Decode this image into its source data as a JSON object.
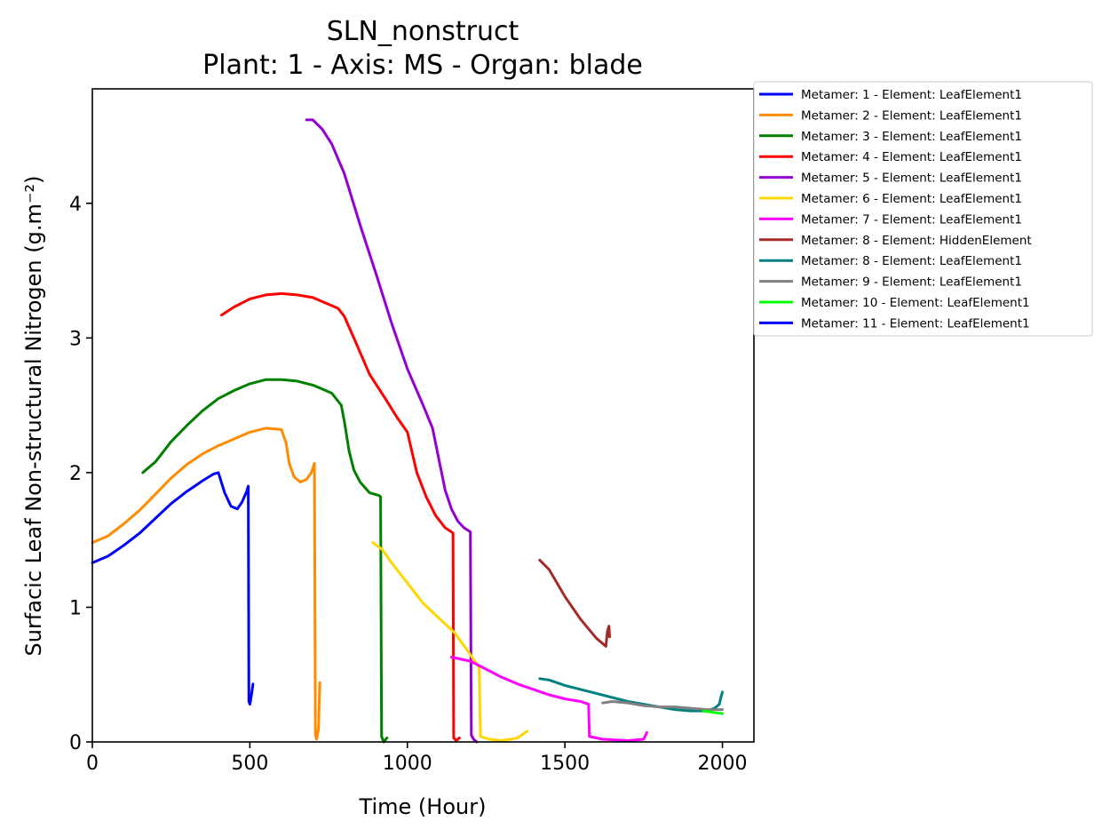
{
  "chart_data": {
    "type": "line",
    "title": "SLN_nonstruct",
    "subtitle": "Plant: 1 - Axis: MS - Organ: blade",
    "xlabel": "Time (Hour)",
    "ylabel": "Surfacic Leaf Non-structural Nitrogen (g.m⁻²)",
    "xlim": [
      0,
      2100
    ],
    "ylim": [
      0,
      4.85
    ],
    "xticks": [
      0,
      500,
      1000,
      1500,
      2000
    ],
    "yticks": [
      0,
      1,
      2,
      3,
      4
    ],
    "grid": false,
    "legend_position": "outside-top-right",
    "series": [
      {
        "name": "Metamer: 1 - Element: LeafElement1",
        "color": "#0000ff",
        "points": [
          [
            0,
            1.33
          ],
          [
            50,
            1.38
          ],
          [
            100,
            1.46
          ],
          [
            150,
            1.55
          ],
          [
            200,
            1.66
          ],
          [
            250,
            1.77
          ],
          [
            300,
            1.86
          ],
          [
            350,
            1.94
          ],
          [
            385,
            1.99
          ],
          [
            400,
            2.0
          ],
          [
            420,
            1.85
          ],
          [
            440,
            1.75
          ],
          [
            460,
            1.73
          ],
          [
            475,
            1.78
          ],
          [
            490,
            1.86
          ],
          [
            495,
            1.9
          ],
          [
            497,
            0.3
          ],
          [
            500,
            0.28
          ],
          [
            505,
            0.35
          ],
          [
            510,
            0.43
          ]
        ]
      },
      {
        "name": "Metamer: 2 - Element: LeafElement1",
        "color": "#ff8c00",
        "points": [
          [
            0,
            1.48
          ],
          [
            50,
            1.53
          ],
          [
            100,
            1.62
          ],
          [
            150,
            1.72
          ],
          [
            200,
            1.84
          ],
          [
            250,
            1.96
          ],
          [
            300,
            2.06
          ],
          [
            350,
            2.14
          ],
          [
            400,
            2.2
          ],
          [
            450,
            2.25
          ],
          [
            500,
            2.3
          ],
          [
            550,
            2.33
          ],
          [
            600,
            2.32
          ],
          [
            615,
            2.22
          ],
          [
            625,
            2.07
          ],
          [
            640,
            1.97
          ],
          [
            660,
            1.93
          ],
          [
            680,
            1.95
          ],
          [
            695,
            2.0
          ],
          [
            705,
            2.07
          ],
          [
            708,
            0.05
          ],
          [
            712,
            0.02
          ],
          [
            718,
            0.1
          ],
          [
            722,
            0.44
          ]
        ]
      },
      {
        "name": "Metamer: 3 - Element: LeafElement1",
        "color": "#008000",
        "points": [
          [
            160,
            2.0
          ],
          [
            200,
            2.08
          ],
          [
            250,
            2.23
          ],
          [
            300,
            2.35
          ],
          [
            350,
            2.46
          ],
          [
            400,
            2.55
          ],
          [
            450,
            2.61
          ],
          [
            500,
            2.66
          ],
          [
            550,
            2.69
          ],
          [
            600,
            2.69
          ],
          [
            650,
            2.68
          ],
          [
            700,
            2.65
          ],
          [
            730,
            2.62
          ],
          [
            760,
            2.59
          ],
          [
            790,
            2.5
          ],
          [
            800,
            2.38
          ],
          [
            815,
            2.16
          ],
          [
            830,
            2.02
          ],
          [
            850,
            1.93
          ],
          [
            880,
            1.85
          ],
          [
            910,
            1.83
          ],
          [
            915,
            1.82
          ],
          [
            918,
            0.04
          ],
          [
            925,
            0.0
          ],
          [
            935,
            0.03
          ]
        ]
      },
      {
        "name": "Metamer: 4 - Element: LeafElement1",
        "color": "#ff0000",
        "points": [
          [
            410,
            3.17
          ],
          [
            450,
            3.23
          ],
          [
            500,
            3.29
          ],
          [
            550,
            3.32
          ],
          [
            600,
            3.33
          ],
          [
            650,
            3.32
          ],
          [
            700,
            3.3
          ],
          [
            750,
            3.25
          ],
          [
            780,
            3.22
          ],
          [
            800,
            3.16
          ],
          [
            830,
            3.0
          ],
          [
            880,
            2.73
          ],
          [
            930,
            2.55
          ],
          [
            970,
            2.4
          ],
          [
            1000,
            2.3
          ],
          [
            1030,
            2.0
          ],
          [
            1060,
            1.82
          ],
          [
            1090,
            1.68
          ],
          [
            1120,
            1.59
          ],
          [
            1140,
            1.56
          ],
          [
            1145,
            1.55
          ],
          [
            1147,
            0.03
          ],
          [
            1155,
            0.01
          ],
          [
            1165,
            0.03
          ]
        ]
      },
      {
        "name": "Metamer: 5 - Element: LeafElement1",
        "color": "#9400d3",
        "points": [
          [
            680,
            4.62
          ],
          [
            700,
            4.62
          ],
          [
            730,
            4.55
          ],
          [
            760,
            4.44
          ],
          [
            800,
            4.22
          ],
          [
            850,
            3.84
          ],
          [
            900,
            3.48
          ],
          [
            950,
            3.11
          ],
          [
            1000,
            2.77
          ],
          [
            1050,
            2.5
          ],
          [
            1080,
            2.33
          ],
          [
            1100,
            2.1
          ],
          [
            1120,
            1.87
          ],
          [
            1140,
            1.73
          ],
          [
            1160,
            1.64
          ],
          [
            1180,
            1.59
          ],
          [
            1200,
            1.56
          ],
          [
            1203,
            0.05
          ],
          [
            1210,
            0.02
          ],
          [
            1220,
            0.0
          ]
        ]
      },
      {
        "name": "Metamer: 6 - Element: LeafElement1",
        "color": "#ffd700",
        "points": [
          [
            890,
            1.48
          ],
          [
            920,
            1.43
          ],
          [
            950,
            1.33
          ],
          [
            1000,
            1.18
          ],
          [
            1050,
            1.03
          ],
          [
            1100,
            0.92
          ],
          [
            1150,
            0.81
          ],
          [
            1190,
            0.68
          ],
          [
            1220,
            0.58
          ],
          [
            1228,
            0.55
          ],
          [
            1232,
            0.04
          ],
          [
            1260,
            0.02
          ],
          [
            1300,
            0.01
          ],
          [
            1350,
            0.03
          ],
          [
            1380,
            0.08
          ]
        ]
      },
      {
        "name": "Metamer: 7 - Element: LeafElement1",
        "color": "#ff00ff",
        "points": [
          [
            1140,
            0.63
          ],
          [
            1200,
            0.6
          ],
          [
            1250,
            0.54
          ],
          [
            1300,
            0.48
          ],
          [
            1350,
            0.43
          ],
          [
            1400,
            0.39
          ],
          [
            1450,
            0.35
          ],
          [
            1500,
            0.32
          ],
          [
            1550,
            0.3
          ],
          [
            1575,
            0.28
          ],
          [
            1578,
            0.04
          ],
          [
            1620,
            0.02
          ],
          [
            1700,
            0.01
          ],
          [
            1750,
            0.02
          ],
          [
            1760,
            0.07
          ]
        ]
      },
      {
        "name": "Metamer: 8 - Element: HiddenElement",
        "color": "#a52a2a",
        "points": [
          [
            1420,
            1.35
          ],
          [
            1450,
            1.28
          ],
          [
            1500,
            1.08
          ],
          [
            1550,
            0.91
          ],
          [
            1600,
            0.77
          ],
          [
            1630,
            0.71
          ],
          [
            1635,
            0.82
          ],
          [
            1640,
            0.86
          ],
          [
            1642,
            0.78
          ]
        ]
      },
      {
        "name": "Metamer: 8 - Element: LeafElement1",
        "color": "#008080",
        "points": [
          [
            1420,
            0.47
          ],
          [
            1450,
            0.46
          ],
          [
            1500,
            0.42
          ],
          [
            1550,
            0.39
          ],
          [
            1600,
            0.36
          ],
          [
            1650,
            0.33
          ],
          [
            1700,
            0.3
          ],
          [
            1750,
            0.28
          ],
          [
            1800,
            0.26
          ],
          [
            1850,
            0.24
          ],
          [
            1900,
            0.23
          ],
          [
            1950,
            0.23
          ],
          [
            1975,
            0.25
          ],
          [
            1990,
            0.28
          ],
          [
            1995,
            0.33
          ],
          [
            2000,
            0.37
          ]
        ]
      },
      {
        "name": "Metamer: 9 - Element: LeafElement1",
        "color": "#808080",
        "points": [
          [
            1620,
            0.29
          ],
          [
            1650,
            0.3
          ],
          [
            1700,
            0.29
          ],
          [
            1750,
            0.27
          ],
          [
            1800,
            0.26
          ],
          [
            1850,
            0.26
          ],
          [
            1900,
            0.25
          ],
          [
            1950,
            0.24
          ],
          [
            2000,
            0.24
          ]
        ]
      },
      {
        "name": "Metamer: 10 - Element: LeafElement1",
        "color": "#00ff00",
        "points": [
          [
            1940,
            0.23
          ],
          [
            1970,
            0.22
          ],
          [
            2000,
            0.21
          ]
        ]
      },
      {
        "name": "Metamer: 11 - Element: LeafElement1",
        "color": "#0000ff",
        "points": []
      }
    ]
  }
}
